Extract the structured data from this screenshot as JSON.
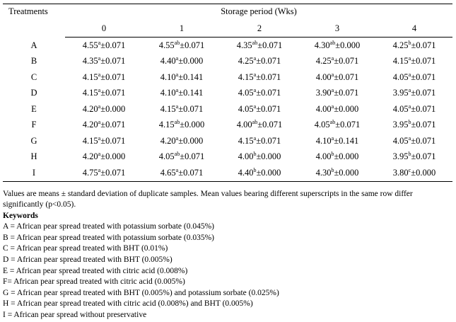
{
  "table": {
    "treatments_header": "Treatments",
    "storage_header": "Storage period (Wks)",
    "weeks": [
      "0",
      "1",
      "2",
      "3",
      "4"
    ],
    "rows": [
      {
        "label": "A",
        "cells": [
          {
            "v": "4.55",
            "s": "a",
            "e": "±0.071"
          },
          {
            "v": "4.55",
            "s": "ab",
            "e": "±0.071"
          },
          {
            "v": "4.35",
            "s": "ab",
            "e": "±0.071"
          },
          {
            "v": "4.30",
            "s": "ab",
            "e": "±0.000"
          },
          {
            "v": "4.25",
            "s": "b",
            "e": "±0.071"
          }
        ]
      },
      {
        "label": "B",
        "cells": [
          {
            "v": "4.35",
            "s": "a",
            "e": "±0.071"
          },
          {
            "v": "4.40",
            "s": "a",
            "e": "±0.000"
          },
          {
            "v": "4.25",
            "s": "a",
            "e": "±0.071"
          },
          {
            "v": "4.25",
            "s": "a",
            "e": "±0.071"
          },
          {
            "v": "4.15",
            "s": "a",
            "e": "±0.071"
          }
        ]
      },
      {
        "label": "C",
        "cells": [
          {
            "v": "4.15",
            "s": "a",
            "e": "±0.071"
          },
          {
            "v": "4.10",
            "s": "a",
            "e": "±0.141"
          },
          {
            "v": "4.15",
            "s": "a",
            "e": "±0.071"
          },
          {
            "v": "4.00",
            "s": "a",
            "e": "±0.071"
          },
          {
            "v": "4.05",
            "s": "a",
            "e": "±0.071"
          }
        ]
      },
      {
        "label": "D",
        "cells": [
          {
            "v": "4.15",
            "s": "a",
            "e": "±0.071"
          },
          {
            "v": "4.10",
            "s": "a",
            "e": "±0.141"
          },
          {
            "v": "4.05",
            "s": "a",
            "e": "±0.071"
          },
          {
            "v": "3.90",
            "s": "a",
            "e": "±0.071"
          },
          {
            "v": "3.95",
            "s": "a",
            "e": "±0.071"
          }
        ]
      },
      {
        "label": "E",
        "cells": [
          {
            "v": "4.20",
            "s": "a",
            "e": "±0.000"
          },
          {
            "v": "4.15",
            "s": "a",
            "e": "±0.071"
          },
          {
            "v": "4.05",
            "s": "a",
            "e": "±0.071"
          },
          {
            "v": "4.00",
            "s": "a",
            "e": "±0.000"
          },
          {
            "v": "4.05",
            "s": "a",
            "e": "±0.071"
          }
        ]
      },
      {
        "label": "F",
        "cells": [
          {
            "v": "4.20",
            "s": "a",
            "e": "±0.071"
          },
          {
            "v": "4.15",
            "s": "ab",
            "e": "±0.000"
          },
          {
            "v": "4.00",
            "s": "ab",
            "e": "±0.071"
          },
          {
            "v": "4.05",
            "s": "ab",
            "e": "±0.071"
          },
          {
            "v": "3.95",
            "s": "b",
            "e": "±0.071"
          }
        ]
      },
      {
        "label": "G",
        "cells": [
          {
            "v": "4.15",
            "s": "a",
            "e": "±0.071"
          },
          {
            "v": "4.20",
            "s": "a",
            "e": "±0.000"
          },
          {
            "v": "4.15",
            "s": "a",
            "e": "±0.071"
          },
          {
            "v": "4.10",
            "s": "a",
            "e": "±0.141"
          },
          {
            "v": "4.05",
            "s": "a",
            "e": "±0.071"
          }
        ]
      },
      {
        "label": "H",
        "cells": [
          {
            "v": "4.20",
            "s": "a",
            "e": "±0.000"
          },
          {
            "v": "4.05",
            "s": "ab",
            "e": "±0.071"
          },
          {
            "v": "4.00",
            "s": "b",
            "e": "±0.000"
          },
          {
            "v": "4.00",
            "s": "b",
            "e": "±0.000"
          },
          {
            "v": "3.95",
            "s": "b",
            "e": "±0.071"
          }
        ]
      },
      {
        "label": "I",
        "cells": [
          {
            "v": "4.75",
            "s": "a",
            "e": "±0.071"
          },
          {
            "v": "4.65",
            "s": "a",
            "e": "±0.071"
          },
          {
            "v": "4.40",
            "s": "b",
            "e": "±0.000"
          },
          {
            "v": "4.30",
            "s": "b",
            "e": "±0.000"
          },
          {
            "v": "3.80",
            "s": "c",
            "e": "±0.000"
          }
        ]
      }
    ]
  },
  "notes": {
    "values_note": "Values are means ± standard deviation of duplicate samples. Mean values bearing different superscripts in the same row differ significantly (p<0.05).",
    "keywords_title": "Keywords",
    "keywords": [
      "A = African pear spread treated with potassium sorbate (0.045%)",
      "B = African pear spread treated with potassium sorbate (0.035%)",
      "C = African pear spread treated with BHT (0.01%)",
      "D = African pear spread treated with BHT (0.005%)",
      "E = African pear spread treated with citric acid (0.008%)",
      "F= African pear spread treated with citric acid (0.005%)",
      "G = African pear spread treated with BHT (0.005%) and potassium sorbate (0.025%)",
      "H = African pear spread treated with citric acid (0.008%) and BHT (0.005%)",
      "I = African pear spread without preservative"
    ]
  }
}
